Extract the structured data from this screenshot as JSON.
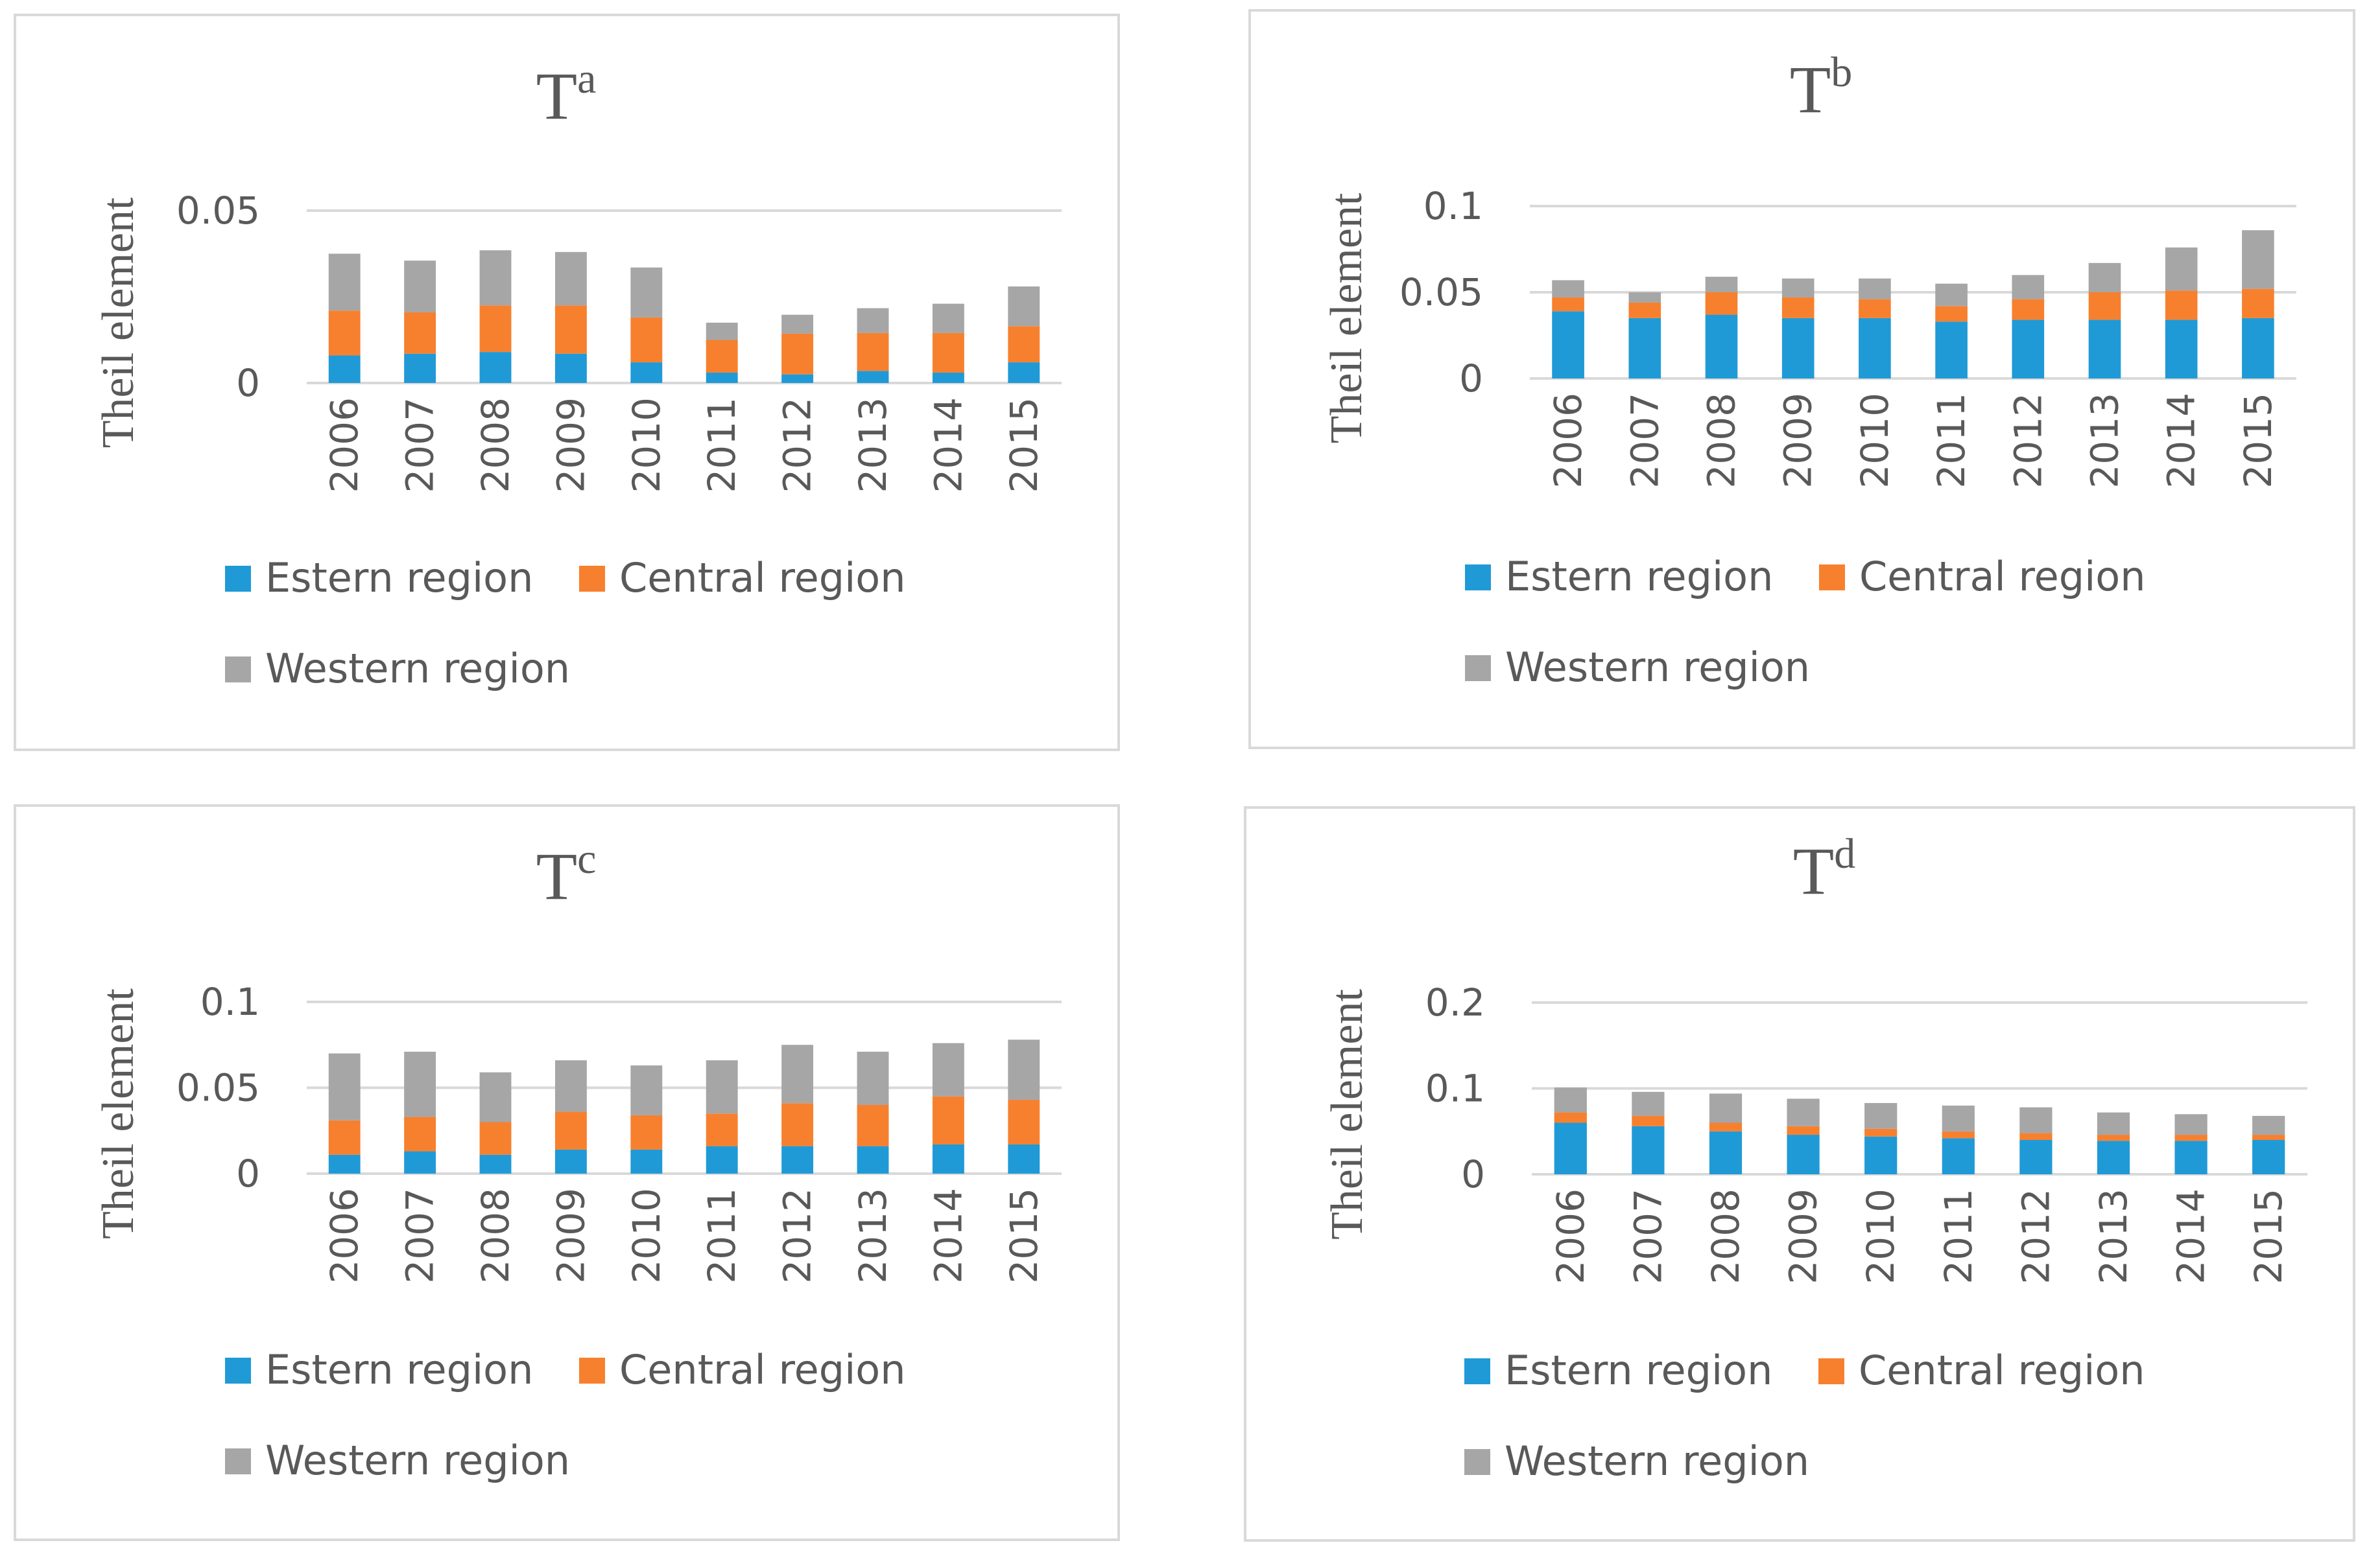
{
  "chart_data": [
    {
      "type": "bar",
      "stacked": true,
      "title": "T",
      "title_superscript": "a",
      "ylabel": "Theil element",
      "xlabel": "",
      "ylim": [
        0,
        0.05
      ],
      "yticks": [
        "0",
        "0.05"
      ],
      "categories": [
        "2006",
        "2007",
        "2008",
        "2009",
        "2010",
        "2011",
        "2012",
        "2013",
        "2014",
        "2015"
      ],
      "series": [
        {
          "name": "Estern region",
          "color": "#1f9ad6",
          "values": [
            0.008,
            0.0085,
            0.009,
            0.0085,
            0.006,
            0.003,
            0.0025,
            0.0035,
            0.003,
            0.006
          ]
        },
        {
          "name": "Central region",
          "color": "#f7802f",
          "values": [
            0.013,
            0.012,
            0.0135,
            0.014,
            0.013,
            0.0095,
            0.0118,
            0.011,
            0.0115,
            0.0105
          ]
        },
        {
          "name": "Western region",
          "color": "#a6a6a6",
          "values": [
            0.0165,
            0.015,
            0.016,
            0.0155,
            0.0145,
            0.005,
            0.0055,
            0.0072,
            0.0085,
            0.0115
          ]
        }
      ],
      "legend": [
        "Estern region",
        "Central region",
        "Western region"
      ],
      "legend_position": "bottom",
      "grid": true
    },
    {
      "type": "bar",
      "stacked": true,
      "title": "T",
      "title_superscript": "b",
      "ylabel": "Theil element",
      "xlabel": "",
      "ylim": [
        0,
        0.1
      ],
      "yticks": [
        "0",
        "0.05",
        "0.1"
      ],
      "categories": [
        "2006",
        "2007",
        "2008",
        "2009",
        "2010",
        "2011",
        "2012",
        "2013",
        "2014",
        "2015"
      ],
      "series": [
        {
          "name": "Estern region",
          "color": "#1f9ad6",
          "values": [
            0.039,
            0.035,
            0.037,
            0.035,
            0.035,
            0.033,
            0.034,
            0.034,
            0.034,
            0.035
          ]
        },
        {
          "name": "Central region",
          "color": "#f7802f",
          "values": [
            0.008,
            0.009,
            0.013,
            0.012,
            0.011,
            0.009,
            0.012,
            0.016,
            0.017,
            0.017
          ]
        },
        {
          "name": "Western region",
          "color": "#a6a6a6",
          "values": [
            0.01,
            0.006,
            0.009,
            0.011,
            0.012,
            0.013,
            0.014,
            0.017,
            0.025,
            0.034
          ]
        }
      ],
      "legend": [
        "Estern region",
        "Central region",
        "Western region"
      ],
      "legend_position": "bottom",
      "grid": true
    },
    {
      "type": "bar",
      "stacked": true,
      "title": "T",
      "title_superscript": "c",
      "ylabel": "Theil element",
      "xlabel": "",
      "ylim": [
        0,
        0.1
      ],
      "yticks": [
        "0",
        "0.05",
        "0.1"
      ],
      "categories": [
        "2006",
        "2007",
        "2008",
        "2009",
        "2010",
        "2011",
        "2012",
        "2013",
        "2014",
        "2015"
      ],
      "series": [
        {
          "name": "Estern region",
          "color": "#1f9ad6",
          "values": [
            0.011,
            0.013,
            0.011,
            0.014,
            0.014,
            0.016,
            0.016,
            0.016,
            0.017,
            0.017
          ]
        },
        {
          "name": "Central region",
          "color": "#f7802f",
          "values": [
            0.02,
            0.02,
            0.019,
            0.022,
            0.02,
            0.019,
            0.025,
            0.024,
            0.028,
            0.026
          ]
        },
        {
          "name": "Western region",
          "color": "#a6a6a6",
          "values": [
            0.039,
            0.038,
            0.029,
            0.03,
            0.029,
            0.031,
            0.034,
            0.031,
            0.031,
            0.035
          ]
        }
      ],
      "legend": [
        "Estern region",
        "Central region",
        "Western region"
      ],
      "legend_position": "bottom",
      "grid": true
    },
    {
      "type": "bar",
      "stacked": true,
      "title": "T",
      "title_superscript": "d",
      "ylabel": "Theil element",
      "xlabel": "",
      "ylim": [
        0,
        0.2
      ],
      "yticks": [
        "0",
        "0.1",
        "0.2"
      ],
      "categories": [
        "2006",
        "2007",
        "2008",
        "2009",
        "2010",
        "2011",
        "2012",
        "2013",
        "2014",
        "2015"
      ],
      "series": [
        {
          "name": "Estern region",
          "color": "#1f9ad6",
          "values": [
            0.06,
            0.056,
            0.05,
            0.046,
            0.044,
            0.042,
            0.04,
            0.039,
            0.039,
            0.04
          ]
        },
        {
          "name": "Central region",
          "color": "#f7802f",
          "values": [
            0.012,
            0.012,
            0.01,
            0.01,
            0.009,
            0.008,
            0.008,
            0.007,
            0.007,
            0.006
          ]
        },
        {
          "name": "Western region",
          "color": "#a6a6a6",
          "values": [
            0.029,
            0.028,
            0.034,
            0.032,
            0.03,
            0.03,
            0.03,
            0.026,
            0.024,
            0.022
          ]
        }
      ],
      "legend": [
        "Estern region",
        "Central region",
        "Western region"
      ],
      "legend_position": "bottom",
      "grid": true
    }
  ]
}
